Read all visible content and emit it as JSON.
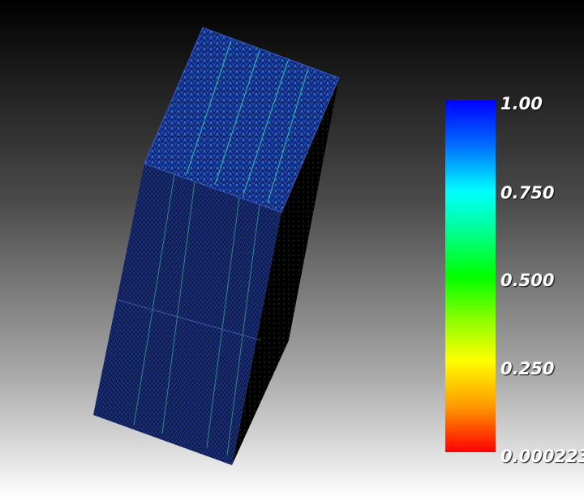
{
  "colorbar": {
    "labels": [
      "1.00",
      "0.750",
      "0.500",
      "0.250",
      "0.000223"
    ],
    "min": 0.000223,
    "max": 1.0,
    "colormap": "rainbow",
    "colors": [
      "#0000ff",
      "#00ffff",
      "#00ff00",
      "#ffff00",
      "#ff0000"
    ]
  },
  "mesh": {
    "face_color": "#1a3a9e",
    "edge_color": "#000000",
    "highlight_color": "#2fe0b0"
  }
}
